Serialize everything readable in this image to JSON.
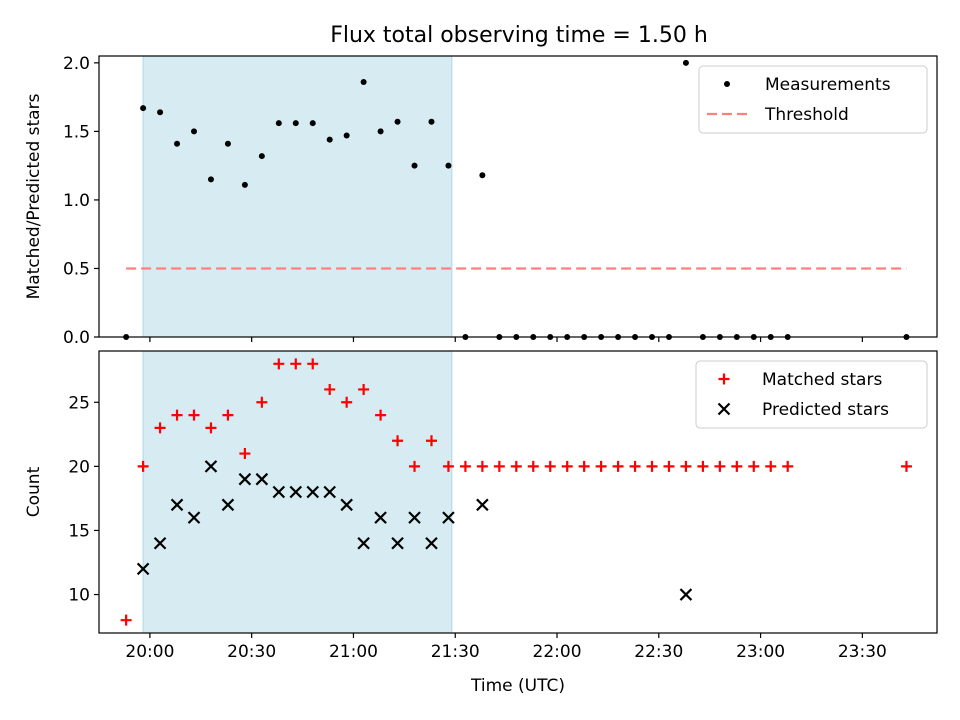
{
  "title": "Flux total observing time = 1.50 h",
  "chart_data": [
    {
      "type": "scatter",
      "panel": "top",
      "ylabel": "Matched/Predicted stars",
      "xlabel": "",
      "x_ticks": [
        "20:00",
        "20:30",
        "21:00",
        "21:30",
        "22:00",
        "22:30",
        "23:00",
        "23:30"
      ],
      "y_ticks": [
        "0.0",
        "0.5",
        "1.0",
        "1.5",
        "2.0"
      ],
      "xlim": [
        "19:45",
        "23:52"
      ],
      "ylim": [
        0,
        2.05
      ],
      "shaded_interval": [
        "19:58",
        "21:29"
      ],
      "shade_color": "#add8e6",
      "legend_position": "top-right",
      "series": [
        {
          "name": "Measurements",
          "marker": "dot",
          "color": "#000000",
          "points": [
            [
              "19:53",
              0.0
            ],
            [
              "19:58",
              1.67
            ],
            [
              "20:03",
              1.64
            ],
            [
              "20:08",
              1.41
            ],
            [
              "20:13",
              1.5
            ],
            [
              "20:18",
              1.15
            ],
            [
              "20:23",
              1.41
            ],
            [
              "20:28",
              1.11
            ],
            [
              "20:33",
              1.32
            ],
            [
              "20:38",
              1.56
            ],
            [
              "20:43",
              1.56
            ],
            [
              "20:48",
              1.56
            ],
            [
              "20:53",
              1.44
            ],
            [
              "20:58",
              1.47
            ],
            [
              "21:03",
              1.86
            ],
            [
              "21:08",
              1.5
            ],
            [
              "21:13",
              1.57
            ],
            [
              "21:18",
              1.25
            ],
            [
              "21:23",
              1.57
            ],
            [
              "21:28",
              1.25
            ],
            [
              "21:33",
              0.0
            ],
            [
              "21:38",
              1.18
            ],
            [
              "21:43",
              0.0
            ],
            [
              "21:48",
              0.0
            ],
            [
              "21:53",
              0.0
            ],
            [
              "21:58",
              0.0
            ],
            [
              "22:03",
              0.0
            ],
            [
              "22:08",
              0.0
            ],
            [
              "22:13",
              0.0
            ],
            [
              "22:18",
              0.0
            ],
            [
              "22:23",
              0.0
            ],
            [
              "22:28",
              0.0
            ],
            [
              "22:33",
              0.0
            ],
            [
              "22:38",
              2.0
            ],
            [
              "22:43",
              0.0
            ],
            [
              "22:48",
              0.0
            ],
            [
              "22:53",
              0.0
            ],
            [
              "22:58",
              0.0
            ],
            [
              "23:03",
              0.0
            ],
            [
              "23:08",
              0.0
            ],
            [
              "23:43",
              0.0
            ]
          ]
        },
        {
          "name": "Threshold",
          "marker": "dashed-line",
          "color": "#ff7f7f",
          "points": [
            [
              "19:53",
              0.5
            ],
            [
              "23:43",
              0.5
            ]
          ]
        }
      ]
    },
    {
      "type": "scatter",
      "panel": "bottom",
      "xlabel": "Time (UTC)",
      "ylabel": "Count",
      "x_ticks": [
        "20:00",
        "20:30",
        "21:00",
        "21:30",
        "22:00",
        "22:30",
        "23:00",
        "23:30"
      ],
      "y_ticks": [
        "10",
        "15",
        "20",
        "25"
      ],
      "xlim": [
        "19:45",
        "23:52"
      ],
      "ylim": [
        7,
        29
      ],
      "shaded_interval": [
        "19:58",
        "21:29"
      ],
      "shade_color": "#add8e6",
      "legend_position": "top-right",
      "series": [
        {
          "name": "Matched stars",
          "marker": "plus",
          "color": "#ff0000",
          "points": [
            [
              "19:53",
              8
            ],
            [
              "19:58",
              20
            ],
            [
              "20:03",
              23
            ],
            [
              "20:08",
              24
            ],
            [
              "20:13",
              24
            ],
            [
              "20:18",
              23
            ],
            [
              "20:23",
              24
            ],
            [
              "20:28",
              21
            ],
            [
              "20:33",
              25
            ],
            [
              "20:38",
              28
            ],
            [
              "20:43",
              28
            ],
            [
              "20:48",
              28
            ],
            [
              "20:53",
              26
            ],
            [
              "20:58",
              25
            ],
            [
              "21:03",
              26
            ],
            [
              "21:08",
              24
            ],
            [
              "21:13",
              22
            ],
            [
              "21:18",
              20
            ],
            [
              "21:23",
              22
            ],
            [
              "21:28",
              20
            ],
            [
              "21:33",
              20
            ],
            [
              "21:38",
              20
            ],
            [
              "21:43",
              20
            ],
            [
              "21:48",
              20
            ],
            [
              "21:53",
              20
            ],
            [
              "21:58",
              20
            ],
            [
              "22:03",
              20
            ],
            [
              "22:08",
              20
            ],
            [
              "22:13",
              20
            ],
            [
              "22:18",
              20
            ],
            [
              "22:23",
              20
            ],
            [
              "22:28",
              20
            ],
            [
              "22:33",
              20
            ],
            [
              "22:38",
              20
            ],
            [
              "22:43",
              20
            ],
            [
              "22:48",
              20
            ],
            [
              "22:53",
              20
            ],
            [
              "22:58",
              20
            ],
            [
              "23:03",
              20
            ],
            [
              "23:08",
              20
            ],
            [
              "23:43",
              20
            ]
          ]
        },
        {
          "name": "Predicted stars",
          "marker": "x",
          "color": "#000000",
          "points": [
            [
              "19:58",
              12
            ],
            [
              "20:03",
              14
            ],
            [
              "20:08",
              17
            ],
            [
              "20:13",
              16
            ],
            [
              "20:18",
              20
            ],
            [
              "20:23",
              17
            ],
            [
              "20:28",
              19
            ],
            [
              "20:33",
              19
            ],
            [
              "20:38",
              18
            ],
            [
              "20:43",
              18
            ],
            [
              "20:48",
              18
            ],
            [
              "20:53",
              18
            ],
            [
              "20:58",
              17
            ],
            [
              "21:03",
              14
            ],
            [
              "21:08",
              16
            ],
            [
              "21:13",
              14
            ],
            [
              "21:18",
              16
            ],
            [
              "21:23",
              14
            ],
            [
              "21:28",
              16
            ],
            [
              "21:38",
              17
            ],
            [
              "22:38",
              10
            ]
          ]
        }
      ]
    }
  ]
}
